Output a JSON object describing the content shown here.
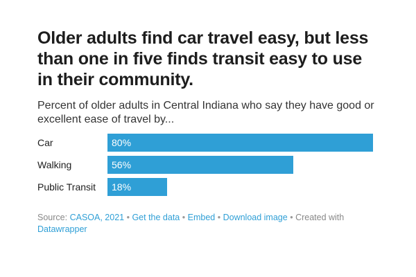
{
  "header": {
    "title": "Older adults find car travel easy, but less than one in five finds transit easy to use in their community.",
    "subtitle": "Percent of older adults in Central Indiana who say they have good or excellent ease of travel by..."
  },
  "colors": {
    "bar": "#2f9fd6",
    "link": "#2f9fd6",
    "muted": "#888888"
  },
  "chart_data": {
    "type": "bar",
    "orientation": "horizontal",
    "title": "Older adults find car travel easy, but less than one in five finds transit easy to use in their community.",
    "subtitle": "Percent of older adults in Central Indiana who say they have good or excellent ease of travel by...",
    "categories": [
      "Car",
      "Walking",
      "Public Transit"
    ],
    "values": [
      80,
      56,
      18
    ],
    "value_labels": [
      "80%",
      "56%",
      "18%"
    ],
    "unit": "%",
    "xlim": [
      0,
      80
    ],
    "grid": false,
    "legend": "none"
  },
  "footer": {
    "source_prefix": "Source:",
    "source_link": "CASOA, 2021",
    "sep": "•",
    "get_data": "Get the data",
    "embed": "Embed",
    "download": "Download image",
    "created_with": "Created with",
    "datawrapper": "Datawrapper"
  }
}
